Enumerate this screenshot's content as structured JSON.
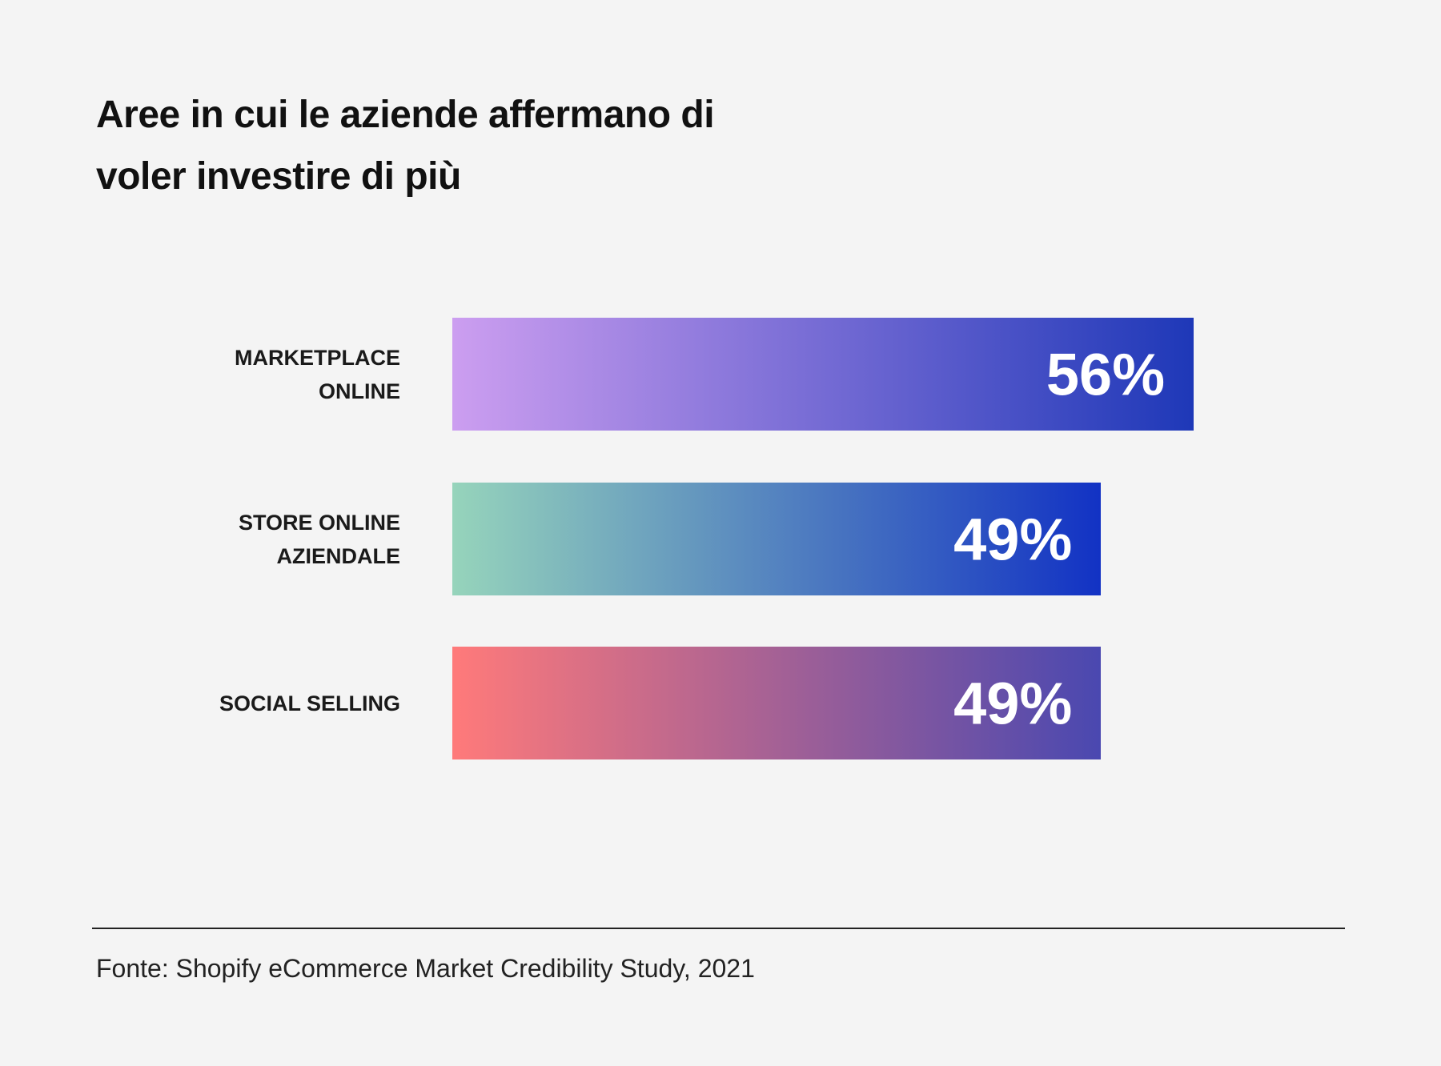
{
  "chart_data": {
    "type": "bar",
    "orientation": "horizontal",
    "title": "Aree in cui le aziende affermano di voler investire di più",
    "categories": [
      "MARKETPLACE ONLINE",
      "STORE ONLINE AZIENDALE",
      "SOCIAL SELLING"
    ],
    "values": [
      56,
      49,
      49
    ],
    "value_labels": [
      "56%",
      "49%",
      "49%"
    ],
    "gradients": [
      [
        "#cc9ef0",
        "#1e38b8"
      ],
      [
        "#96d4bb",
        "#1232c4"
      ],
      [
        "#ff7a7a",
        "#4a48b0"
      ]
    ],
    "source": "Fonte: Shopify eCommerce Market Credibility Study, 2021"
  }
}
